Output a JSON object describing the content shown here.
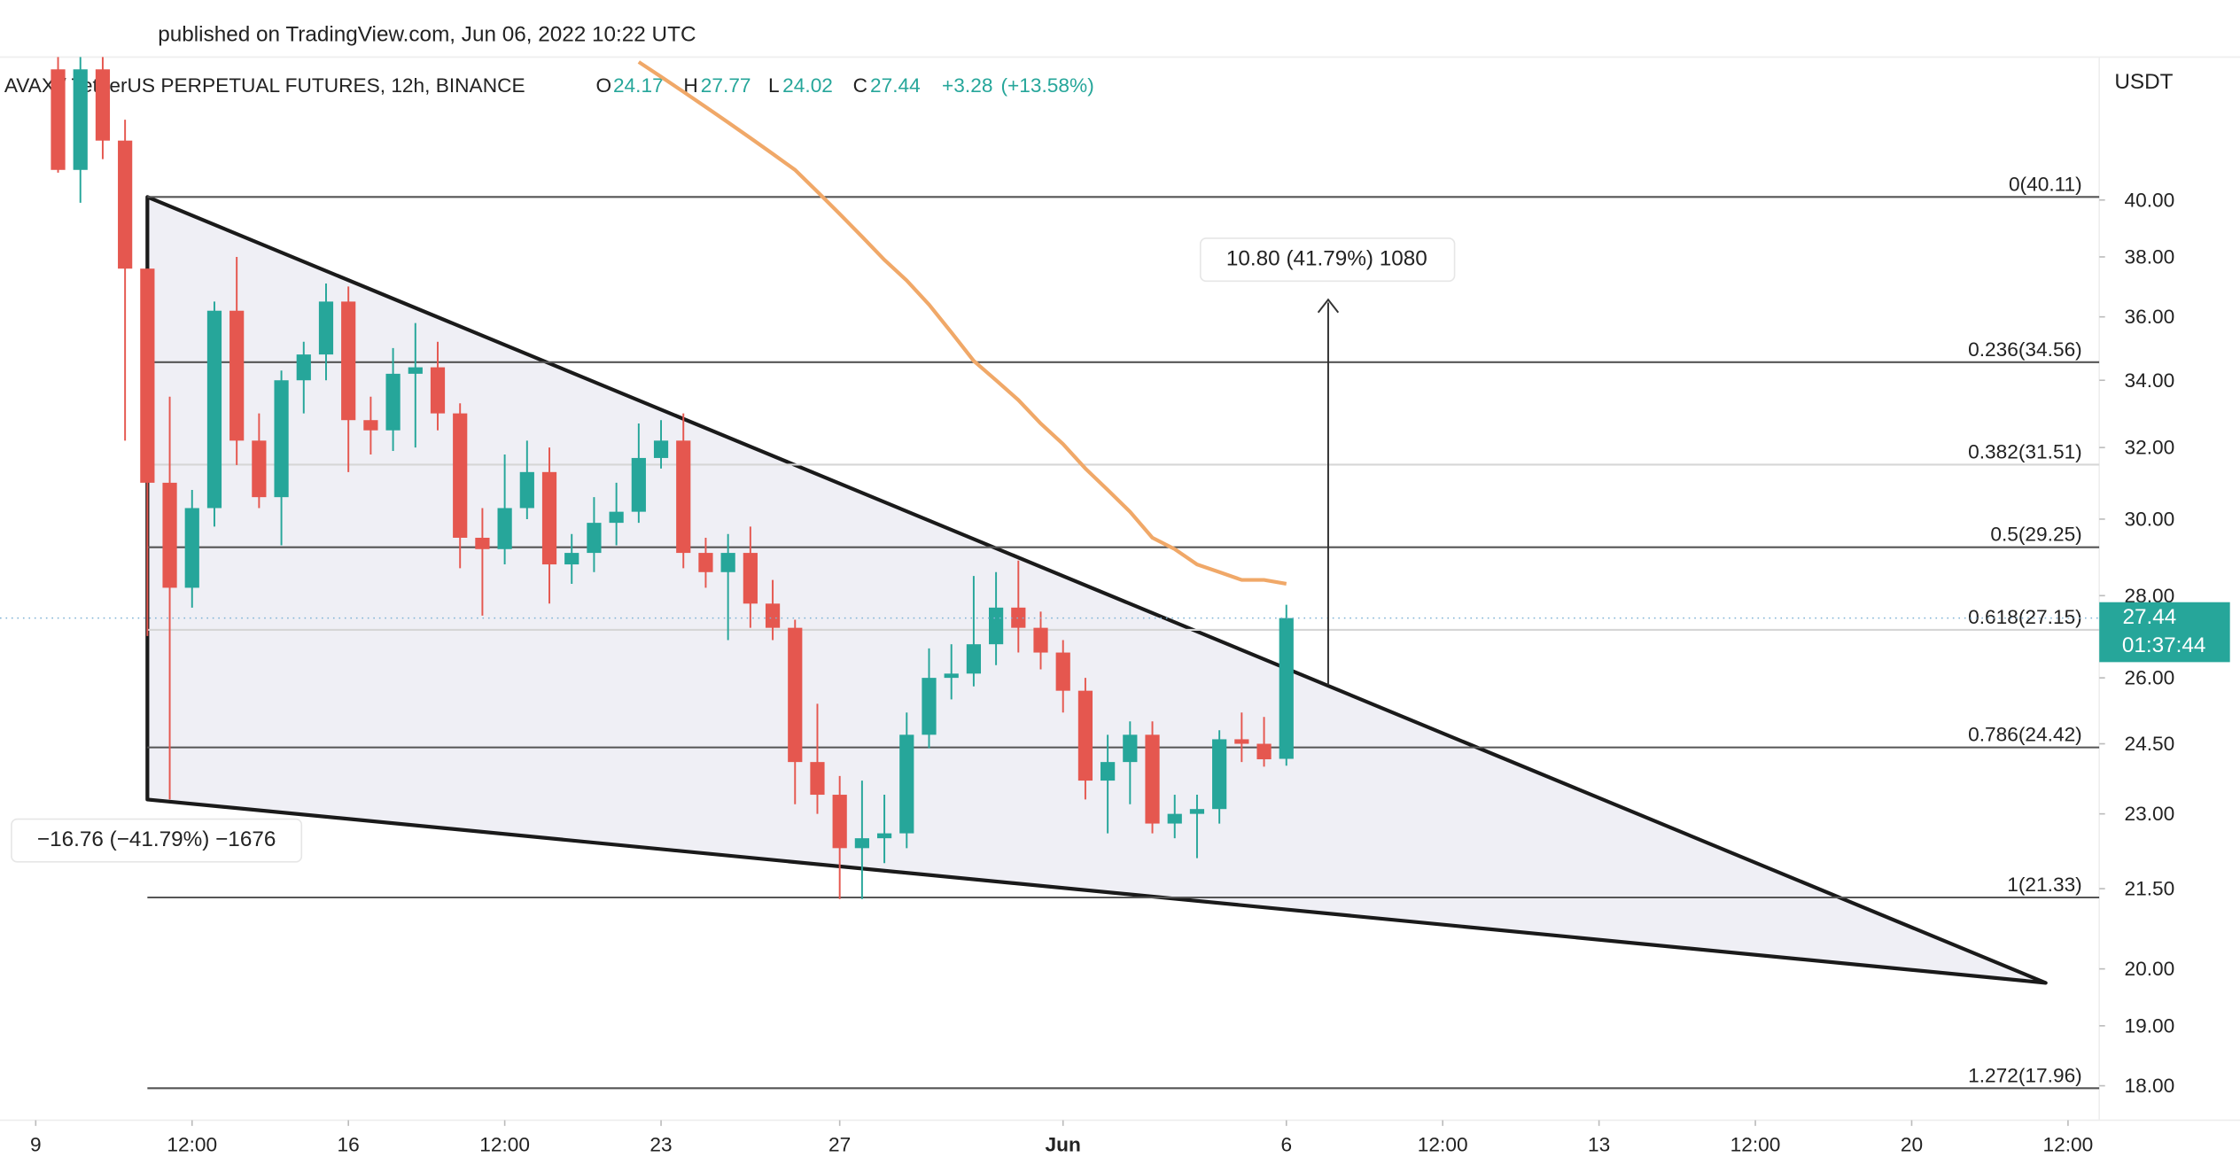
{
  "chart_data": {
    "type": "candlestick",
    "title": "published on TradingView.com, Jun 06, 2022 10:22 UTC",
    "subtitle": "AVAX / TetherUS PERPETUAL FUTURES, 12h, BINANCE",
    "ohlc_letters": [
      "O",
      "H",
      "L",
      "C"
    ],
    "change": {
      "value": 3.28,
      "label": "+3.28"
    },
    "change_pct": {
      "value": 13.58,
      "label": "(+13.58%)"
    },
    "countdown": "01:37:44",
    "y_unit": "USDT",
    "log_scale": true,
    "up_color": "#26a69a",
    "down_color": "#e5574f",
    "xlim": [
      8.2,
      55.2
    ],
    "ylim": [
      17.45,
      45.5
    ],
    "xticks": [
      9,
      {
        "value": 12.5,
        "label": "12:00"
      },
      16,
      {
        "value": 19.5,
        "label": "12:00"
      },
      23,
      27,
      {
        "value": 32,
        "label": "Jun"
      },
      {
        "value": 37,
        "label": "6"
      },
      {
        "value": 40.5,
        "label": "12:00"
      },
      {
        "value": 44,
        "label": "13"
      },
      {
        "value": 47.5,
        "label": "12:00"
      },
      {
        "value": 51,
        "label": "20"
      },
      {
        "value": 54.5,
        "label": "12:00"
      }
    ],
    "yticks": [
      {
        "value": 40,
        "label": "40.00"
      },
      {
        "value": 38,
        "label": "38.00"
      },
      {
        "value": 36,
        "label": "36.00"
      },
      {
        "value": 34,
        "label": "34.00"
      },
      {
        "value": 32,
        "label": "32.00"
      },
      {
        "value": 30,
        "label": "30.00"
      },
      {
        "value": 28,
        "label": "28.00"
      },
      {
        "value": 26,
        "label": "26.00"
      },
      {
        "value": 24.5,
        "label": "24.50"
      },
      {
        "value": 23,
        "label": "23.00"
      },
      {
        "value": 21.5,
        "label": "21.50"
      },
      {
        "value": 20,
        "label": "20.00"
      },
      {
        "value": 19,
        "label": "19.00"
      },
      {
        "value": 18,
        "label": "18.00"
      }
    ],
    "candles": {
      "x": [
        9.5,
        10,
        10.5,
        11,
        11.5,
        12,
        12.5,
        13,
        13.5,
        14,
        14.5,
        15,
        15.5,
        16,
        16.5,
        17,
        17.5,
        18,
        18.5,
        19,
        19.5,
        20,
        20.5,
        21,
        21.5,
        22,
        22.5,
        23,
        23.5,
        24,
        24.5,
        25,
        25.5,
        26,
        26.5,
        27,
        27.5,
        28,
        28.5,
        29,
        29.5,
        30,
        30.5,
        31,
        31.5,
        32,
        32.5,
        33,
        33.5,
        34,
        34.5,
        35,
        35.5,
        36,
        36.5,
        37
      ],
      "open": [
        45,
        41.1,
        45,
        42.2,
        37.6,
        31.0,
        28.2,
        30.3,
        36.2,
        32.2,
        30.6,
        34.0,
        34.8,
        36.5,
        32.8,
        32.5,
        34.2,
        34.4,
        33.0,
        29.5,
        29.2,
        30.3,
        31.3,
        28.8,
        29.1,
        29.9,
        30.2,
        31.7,
        32.2,
        29.1,
        28.6,
        29.1,
        27.8,
        27.2,
        24.1,
        23.4,
        22.3,
        22.5,
        22.6,
        24.7,
        26.0,
        26.1,
        26.8,
        27.7,
        27.2,
        26.6,
        25.7,
        23.7,
        24.1,
        24.7,
        22.8,
        23.0,
        23.1,
        24.6,
        24.5,
        24.17
      ],
      "high": [
        46,
        46,
        46,
        43,
        37.6,
        33.5,
        30.8,
        36.5,
        38.0,
        33.0,
        34.3,
        35.2,
        37.1,
        37.0,
        33.5,
        35.0,
        35.8,
        35.2,
        33.3,
        30.3,
        31.8,
        32.2,
        32.0,
        29.6,
        30.6,
        31.0,
        32.7,
        32.8,
        33.0,
        29.5,
        29.6,
        29.8,
        28.4,
        27.4,
        25.4,
        23.8,
        23.7,
        23.4,
        25.2,
        26.7,
        26.8,
        28.5,
        28.6,
        28.9,
        27.6,
        26.9,
        26.0,
        24.7,
        25.0,
        25.0,
        23.4,
        23.4,
        24.8,
        25.2,
        25.1,
        27.77
      ],
      "low": [
        41.0,
        39.9,
        41.5,
        32.2,
        27.0,
        23.3,
        27.7,
        29.8,
        31.5,
        30.3,
        29.3,
        33.0,
        34.0,
        31.3,
        31.8,
        31.9,
        32.0,
        32.5,
        28.7,
        27.5,
        28.8,
        30.0,
        27.8,
        28.3,
        28.6,
        29.3,
        29.9,
        31.4,
        28.7,
        28.2,
        26.9,
        27.2,
        26.9,
        23.2,
        23.0,
        21.3,
        21.3,
        22.0,
        22.3,
        24.4,
        25.5,
        25.8,
        26.3,
        26.6,
        26.2,
        25.2,
        23.3,
        22.6,
        23.2,
        22.6,
        22.5,
        22.1,
        22.8,
        24.1,
        24.0,
        24.02
      ],
      "close": [
        41.1,
        45,
        42.2,
        37.6,
        31.0,
        28.2,
        30.3,
        36.2,
        32.2,
        30.6,
        34.0,
        34.8,
        36.5,
        32.8,
        32.5,
        34.2,
        34.4,
        33.0,
        29.5,
        29.2,
        30.3,
        31.3,
        28.8,
        29.1,
        29.9,
        30.2,
        31.7,
        32.2,
        29.1,
        28.6,
        29.1,
        27.8,
        27.2,
        24.1,
        23.4,
        22.3,
        22.5,
        22.6,
        24.7,
        26.0,
        26.1,
        26.8,
        27.7,
        27.2,
        26.6,
        25.7,
        23.7,
        24.1,
        24.7,
        22.8,
        23.0,
        23.1,
        24.6,
        24.5,
        24.16,
        27.44
      ]
    },
    "ma": {
      "color": "#f0a868",
      "x": [
        22.5,
        23,
        23.5,
        24,
        24.5,
        25,
        25.5,
        26,
        26.5,
        27,
        27.5,
        28,
        28.5,
        29,
        29.5,
        30,
        30.5,
        31,
        31.5,
        32,
        32.5,
        33,
        33.5,
        34,
        34.5,
        35,
        35.5,
        36,
        36.5,
        37
      ],
      "values": [
        45.3,
        44.7,
        44.1,
        43.5,
        42.9,
        42.3,
        41.7,
        41.1,
        40.3,
        39.5,
        38.7,
        37.9,
        37.2,
        36.4,
        35.5,
        34.6,
        34.0,
        33.4,
        32.7,
        32.1,
        31.4,
        30.8,
        30.2,
        29.5,
        29.2,
        28.8,
        28.6,
        28.4,
        28.4,
        28.3
      ]
    },
    "fib_levels": [
      {
        "label": "0(40.11)",
        "value": 40.11,
        "color": "#555555"
      },
      {
        "label": "0.236(34.56)",
        "value": 34.56,
        "color": "#555555"
      },
      {
        "label": "0.382(31.51)",
        "value": 31.51,
        "color": "#d6d6d6"
      },
      {
        "label": "0.5(29.25)",
        "value": 29.25,
        "color": "#555555"
      },
      {
        "label": "0.618(27.15)",
        "value": 27.15,
        "color": "#d6d6d6"
      },
      {
        "label": "0.786(24.42)",
        "value": 24.42,
        "color": "#555555"
      },
      {
        "label": "1(21.33)",
        "value": 21.33,
        "color": "#555555"
      },
      {
        "label": "1.272(17.96)",
        "value": 17.96,
        "color": "#555555"
      }
    ],
    "wedge": {
      "x": [
        11.5,
        11.5,
        54.0
      ],
      "y": [
        40.11,
        23.3,
        19.75
      ]
    },
    "measures": [
      "10.80 (41.79%) 1080",
      "−16.76 (−41.79%) −1676"
    ]
  }
}
